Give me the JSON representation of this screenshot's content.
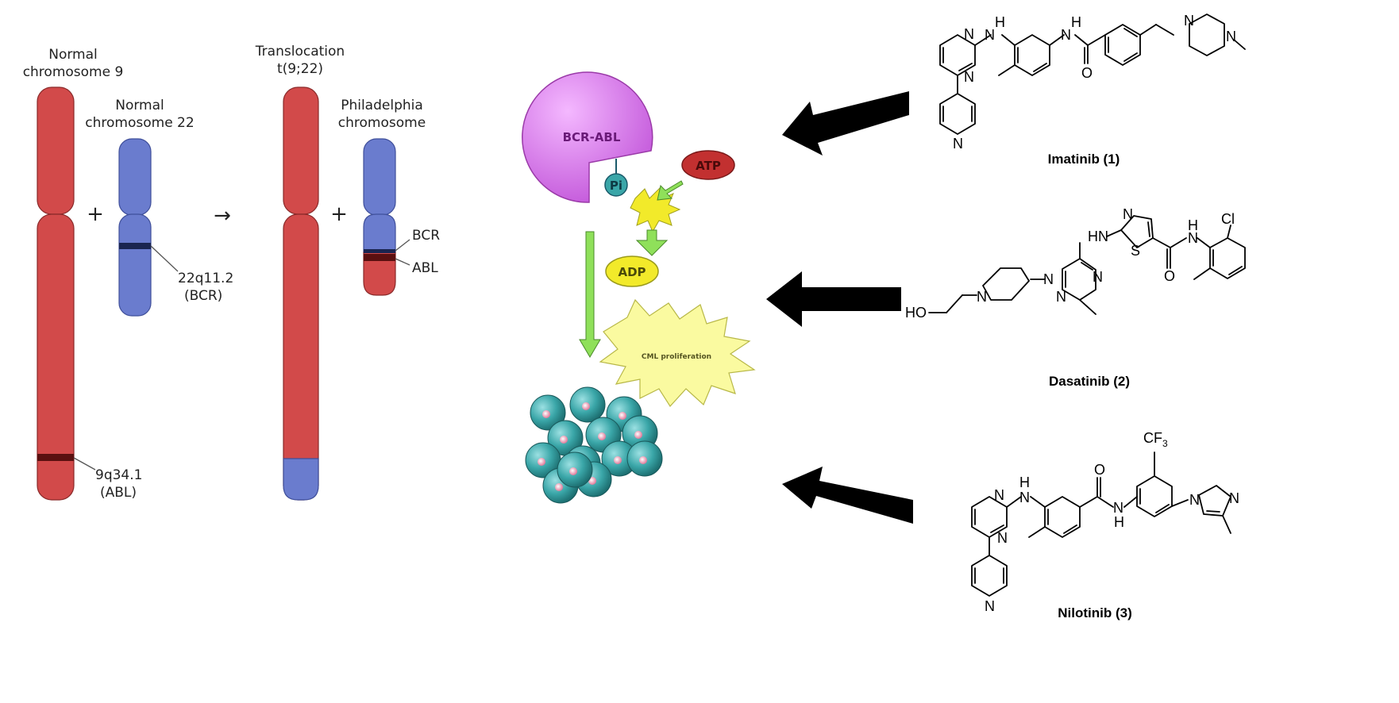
{
  "figure": {
    "left_panel": {
      "chr9_label": "Normal\nchromosome 9",
      "chr22_label": "Normal\nchromosome 22",
      "translocation_label": "Translocation\nt(9;22)",
      "philadelphia_label": "Philadelphia\nchromosome",
      "plus_symbol": "+",
      "arrow_symbol": "→",
      "band_22q": "22q11.2",
      "band_22q_gene": "(BCR)",
      "band_9q": "9q34.1",
      "band_9q_gene": "(ABL)",
      "bcr_label": "BCR",
      "abl_label": "ABL"
    },
    "middle_panel": {
      "enzyme_label": "BCR-ABL",
      "pi_label": "Pi",
      "atp_label": "ATP",
      "adp_label": "ADP",
      "burst_label": "CML proliferation"
    },
    "right_panel": {
      "drugs": [
        {
          "name": "Imatinib (1)"
        },
        {
          "name": "Dasatinib (2)"
        },
        {
          "name": "Nilotinib (3)"
        }
      ],
      "atoms": {
        "N": "N",
        "H": "H",
        "O": "O",
        "S": "S",
        "Cl": "Cl",
        "HO": "HO",
        "CF3": "CF",
        "CF3_sub": "3"
      }
    },
    "colors": {
      "chromosome_red": "#d24a4a",
      "chromosome_blue": "#6a7cce",
      "band_dark": "#5a1010",
      "enzyme_magenta": "#d070e0",
      "atp_red": "#c23030",
      "adp_yellow": "#f2ea2a",
      "arrow_green": "#8fe05a",
      "cell_teal": "#3aa6a8"
    }
  }
}
